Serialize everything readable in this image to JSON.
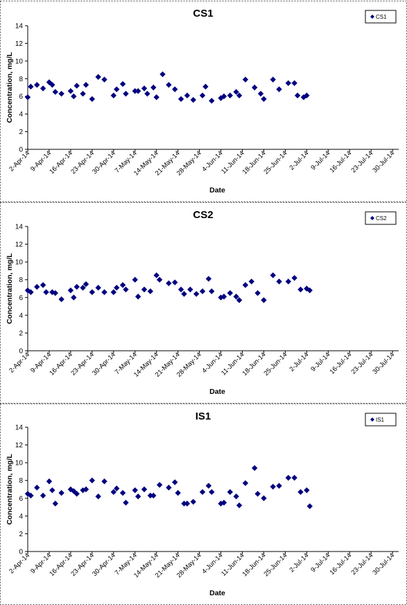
{
  "chart_data": [
    {
      "type": "scatter",
      "title": "CS1",
      "xlabel": "Date",
      "ylabel": "Concentration, mg/L",
      "ylim": [
        0,
        14
      ],
      "yticks": [
        "0",
        "2",
        "4",
        "6",
        "8",
        "10",
        "12",
        "14"
      ],
      "xlim": [
        "2-Apr-14",
        "1-Aug-14"
      ],
      "xticks": [
        "2-Apr-14",
        "9-Apr-14",
        "16-Apr-14",
        "23-Apr-14",
        "30-Apr-14",
        "7-May-14",
        "14-May-14",
        "21-May-14",
        "28-May-14",
        "4-Jun-14",
        "11-Jun-14",
        "18-Jun-14",
        "25-Jun-14",
        "2-Jul-14",
        "9-Jul-14",
        "16-Jul-14",
        "23-Jul-14",
        "30-Jul-14"
      ],
      "legend": "top-right",
      "grid": false,
      "series": [
        {
          "name": "CS1",
          "color": "#000080",
          "marker": "diamond",
          "points": [
            [
              "2-Apr-14",
              5.9
            ],
            [
              "3-Apr-14",
              7.1
            ],
            [
              "5-Apr-14",
              7.3
            ],
            [
              "7-Apr-14",
              6.9
            ],
            [
              "9-Apr-14",
              7.6
            ],
            [
              "10-Apr-14",
              7.3
            ],
            [
              "11-Apr-14",
              6.5
            ],
            [
              "13-Apr-14",
              6.3
            ],
            [
              "16-Apr-14",
              6.6
            ],
            [
              "17-Apr-14",
              6.0
            ],
            [
              "18-Apr-14",
              7.2
            ],
            [
              "20-Apr-14",
              6.3
            ],
            [
              "21-Apr-14",
              7.3
            ],
            [
              "23-Apr-14",
              5.7
            ],
            [
              "25-Apr-14",
              8.2
            ],
            [
              "27-Apr-14",
              7.9
            ],
            [
              "30-Apr-14",
              6.1
            ],
            [
              "1-May-14",
              6.8
            ],
            [
              "3-May-14",
              7.4
            ],
            [
              "4-May-14",
              6.3
            ],
            [
              "7-May-14",
              6.6
            ],
            [
              "8-May-14",
              6.6
            ],
            [
              "10-May-14",
              6.9
            ],
            [
              "11-May-14",
              6.3
            ],
            [
              "13-May-14",
              7.0
            ],
            [
              "14-May-14",
              5.9
            ],
            [
              "16-May-14",
              8.5
            ],
            [
              "18-May-14",
              7.3
            ],
            [
              "20-May-14",
              6.8
            ],
            [
              "22-May-14",
              5.7
            ],
            [
              "24-May-14",
              6.1
            ],
            [
              "26-May-14",
              5.6
            ],
            [
              "29-May-14",
              6.1
            ],
            [
              "30-May-14",
              7.1
            ],
            [
              "1-Jun-14",
              5.5
            ],
            [
              "4-Jun-14",
              5.8
            ],
            [
              "5-Jun-14",
              6.0
            ],
            [
              "7-Jun-14",
              6.1
            ],
            [
              "9-Jun-14",
              6.5
            ],
            [
              "10-Jun-14",
              6.1
            ],
            [
              "12-Jun-14",
              7.9
            ],
            [
              "15-Jun-14",
              7.0
            ],
            [
              "17-Jun-14",
              6.3
            ],
            [
              "18-Jun-14",
              5.7
            ],
            [
              "21-Jun-14",
              7.9
            ],
            [
              "23-Jun-14",
              6.8
            ],
            [
              "26-Jun-14",
              7.5
            ],
            [
              "28-Jun-14",
              7.5
            ],
            [
              "29-Jun-14",
              6.1
            ],
            [
              "1-Jul-14",
              5.9
            ],
            [
              "2-Jul-14",
              6.1
            ]
          ]
        }
      ]
    },
    {
      "type": "scatter",
      "title": "CS2",
      "xlabel": "Date",
      "ylabel": "Concentration, mg/L",
      "ylim": [
        0,
        14
      ],
      "yticks": [
        "0",
        "2",
        "4",
        "6",
        "8",
        "10",
        "12",
        "14"
      ],
      "xlim": [
        "2-Apr-14",
        "1-Aug-14"
      ],
      "xticks": [
        "2-Apr-14",
        "9-Apr-14",
        "16-Apr-14",
        "23-Apr-14",
        "30-Apr-14",
        "7-May-14",
        "14-May-14",
        "21-May-14",
        "28-May-14",
        "4-Jun-14",
        "11-Jun-14",
        "18-Jun-14",
        "25-Jun-14",
        "2-Jul-14",
        "9-Jul-14",
        "16-Jul-14",
        "23-Jul-14",
        "30-Jul-14"
      ],
      "legend": "top-right",
      "grid": false,
      "series": [
        {
          "name": "CS2",
          "color": "#000080",
          "marker": "diamond",
          "points": [
            [
              "2-Apr-14",
              6.8
            ],
            [
              "3-Apr-14",
              6.6
            ],
            [
              "5-Apr-14",
              7.2
            ],
            [
              "7-Apr-14",
              7.4
            ],
            [
              "8-Apr-14",
              6.6
            ],
            [
              "10-Apr-14",
              6.6
            ],
            [
              "11-Apr-14",
              6.5
            ],
            [
              "13-Apr-14",
              5.8
            ],
            [
              "16-Apr-14",
              6.8
            ],
            [
              "17-Apr-14",
              6.0
            ],
            [
              "18-Apr-14",
              7.2
            ],
            [
              "20-Apr-14",
              7.1
            ],
            [
              "21-Apr-14",
              7.5
            ],
            [
              "23-Apr-14",
              6.6
            ],
            [
              "25-Apr-14",
              7.1
            ],
            [
              "27-Apr-14",
              6.6
            ],
            [
              "30-Apr-14",
              6.6
            ],
            [
              "1-May-14",
              7.1
            ],
            [
              "3-May-14",
              7.4
            ],
            [
              "4-May-14",
              6.9
            ],
            [
              "7-May-14",
              8.0
            ],
            [
              "8-May-14",
              6.1
            ],
            [
              "10-May-14",
              6.9
            ],
            [
              "12-May-14",
              6.7
            ],
            [
              "14-May-14",
              8.5
            ],
            [
              "15-May-14",
              8.0
            ],
            [
              "18-May-14",
              7.6
            ],
            [
              "20-May-14",
              7.7
            ],
            [
              "22-May-14",
              6.9
            ],
            [
              "23-May-14",
              6.4
            ],
            [
              "25-May-14",
              6.9
            ],
            [
              "27-May-14",
              6.4
            ],
            [
              "29-May-14",
              6.7
            ],
            [
              "31-May-14",
              8.1
            ],
            [
              "1-Jun-14",
              6.7
            ],
            [
              "4-Jun-14",
              6.0
            ],
            [
              "5-Jun-14",
              6.1
            ],
            [
              "7-Jun-14",
              6.5
            ],
            [
              "9-Jun-14",
              6.1
            ],
            [
              "10-Jun-14",
              5.7
            ],
            [
              "12-Jun-14",
              7.4
            ],
            [
              "14-Jun-14",
              7.8
            ],
            [
              "16-Jun-14",
              6.5
            ],
            [
              "18-Jun-14",
              5.7
            ],
            [
              "21-Jun-14",
              8.5
            ],
            [
              "23-Jun-14",
              7.8
            ],
            [
              "26-Jun-14",
              7.8
            ],
            [
              "28-Jun-14",
              8.2
            ],
            [
              "30-Jun-14",
              6.9
            ],
            [
              "2-Jul-14",
              7.0
            ],
            [
              "3-Jul-14",
              6.8
            ]
          ]
        }
      ]
    },
    {
      "type": "scatter",
      "title": "IS1",
      "xlabel": "Date",
      "ylabel": "Concentration, mg/L",
      "ylim": [
        0,
        14
      ],
      "yticks": [
        "0",
        "2",
        "4",
        "6",
        "8",
        "10",
        "12",
        "14"
      ],
      "xlim": [
        "2-Apr-14",
        "1-Aug-14"
      ],
      "xticks": [
        "2-Apr-14",
        "9-Apr-14",
        "16-Apr-14",
        "23-Apr-14",
        "30-Apr-14",
        "7-May-14",
        "14-May-14",
        "21-May-14",
        "28-May-14",
        "4-Jun-14",
        "11-Jun-14",
        "18-Jun-14",
        "25-Jun-14",
        "2-Jul-14",
        "9-Jul-14",
        "16-Jul-14",
        "23-Jul-14",
        "30-Jul-14"
      ],
      "legend": "top-right",
      "grid": false,
      "series": [
        {
          "name": "IS1",
          "color": "#000080",
          "marker": "diamond",
          "points": [
            [
              "2-Apr-14",
              6.5
            ],
            [
              "3-Apr-14",
              6.3
            ],
            [
              "5-Apr-14",
              7.2
            ],
            [
              "7-Apr-14",
              6.3
            ],
            [
              "9-Apr-14",
              7.9
            ],
            [
              "10-Apr-14",
              6.9
            ],
            [
              "11-Apr-14",
              5.4
            ],
            [
              "13-Apr-14",
              6.6
            ],
            [
              "16-Apr-14",
              7.0
            ],
            [
              "17-Apr-14",
              6.8
            ],
            [
              "18-Apr-14",
              6.5
            ],
            [
              "20-Apr-14",
              6.9
            ],
            [
              "21-Apr-14",
              7.0
            ],
            [
              "23-Apr-14",
              8.0
            ],
            [
              "25-Apr-14",
              6.2
            ],
            [
              "27-Apr-14",
              7.9
            ],
            [
              "30-Apr-14",
              6.7
            ],
            [
              "1-May-14",
              7.1
            ],
            [
              "3-May-14",
              6.6
            ],
            [
              "4-May-14",
              5.5
            ],
            [
              "7-May-14",
              6.9
            ],
            [
              "8-May-14",
              6.2
            ],
            [
              "10-May-14",
              7.0
            ],
            [
              "12-May-14",
              6.3
            ],
            [
              "13-May-14",
              6.3
            ],
            [
              "15-May-14",
              7.5
            ],
            [
              "18-May-14",
              7.2
            ],
            [
              "20-May-14",
              7.8
            ],
            [
              "21-May-14",
              6.6
            ],
            [
              "23-May-14",
              5.4
            ],
            [
              "24-May-14",
              5.4
            ],
            [
              "26-May-14",
              5.6
            ],
            [
              "29-May-14",
              6.7
            ],
            [
              "31-May-14",
              7.4
            ],
            [
              "1-Jun-14",
              6.7
            ],
            [
              "4-Jun-14",
              5.4
            ],
            [
              "5-Jun-14",
              5.5
            ],
            [
              "7-Jun-14",
              6.7
            ],
            [
              "9-Jun-14",
              6.2
            ],
            [
              "10-Jun-14",
              5.2
            ],
            [
              "12-Jun-14",
              7.7
            ],
            [
              "15-Jun-14",
              9.4
            ],
            [
              "16-Jun-14",
              6.5
            ],
            [
              "18-Jun-14",
              6.0
            ],
            [
              "21-Jun-14",
              7.3
            ],
            [
              "23-Jun-14",
              7.4
            ],
            [
              "26-Jun-14",
              8.3
            ],
            [
              "28-Jun-14",
              8.3
            ],
            [
              "30-Jun-14",
              6.7
            ],
            [
              "2-Jul-14",
              6.9
            ],
            [
              "3-Jul-14",
              5.1
            ]
          ]
        }
      ]
    }
  ]
}
